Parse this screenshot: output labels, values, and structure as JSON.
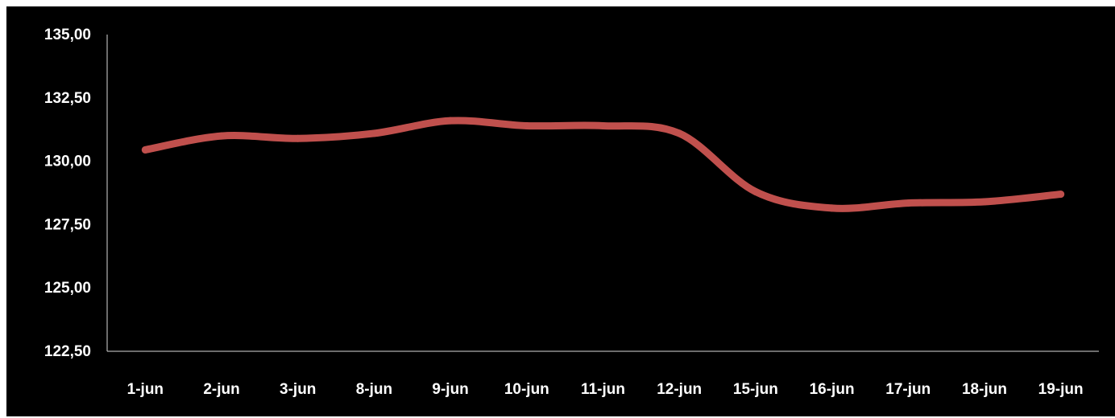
{
  "chart_data": {
    "type": "line",
    "title": "",
    "xlabel": "",
    "ylabel": "",
    "categories": [
      "1-jun",
      "2-jun",
      "3-jun",
      "8-jun",
      "9-jun",
      "10-jun",
      "11-jun",
      "12-jun",
      "15-jun",
      "16-jun",
      "17-jun",
      "18-jun",
      "19-jun"
    ],
    "series": [
      {
        "name": "",
        "values": [
          130.45,
          131.0,
          130.9,
          131.1,
          131.6,
          131.4,
          131.4,
          131.1,
          128.8,
          128.15,
          128.35,
          128.4,
          128.7
        ]
      }
    ],
    "ylim": [
      122.5,
      135.0
    ],
    "y_ticks": [
      122.5,
      125.0,
      127.5,
      130.0,
      132.5,
      135.0
    ],
    "y_tick_labels": [
      "122,50",
      "125,00",
      "127,50",
      "130,00",
      "132,50",
      "135,00"
    ],
    "grid": false,
    "legend": "none",
    "colors": {
      "background": "#000000",
      "line": "#c0504d",
      "axis": "#d9d9d9",
      "text": "#ffffff"
    }
  }
}
